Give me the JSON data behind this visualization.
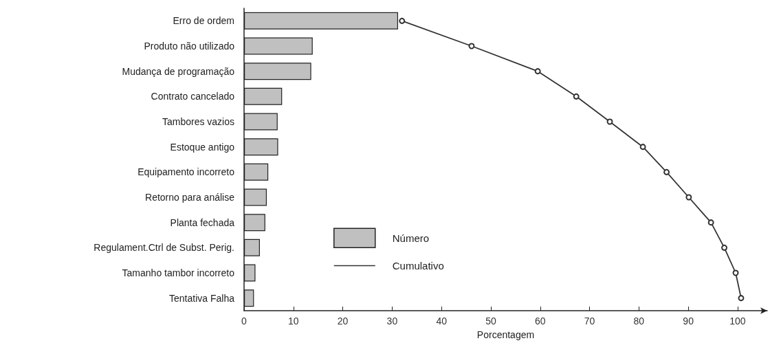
{
  "chart_data": {
    "type": "bar",
    "orientation": "horizontal",
    "xlabel": "Porcentagem",
    "categories": [
      "Erro de ordem",
      "Produto não utilizado",
      "Mudança de programação",
      "Contrato cancelado",
      "Tambores vazios",
      "Estoque antigo",
      "Equipamento incorreto",
      "Retorno para análise",
      "Planta fechada",
      "Regulament.Ctrl de Subst. Perig.",
      "Tamanho tambor incorreto",
      "Tentativa Falha"
    ],
    "series": [
      {
        "name": "Número",
        "color": "#c0c0c0",
        "values": [
          31.2,
          13.9,
          13.6,
          7.7,
          6.8,
          6.9,
          4.9,
          4.6,
          4.3,
          3.2,
          2.3,
          2.0
        ]
      },
      {
        "name": "Cumulativo",
        "type": "line",
        "color": "#333333",
        "values": [
          32.0,
          46.1,
          59.5,
          67.3,
          74.1,
          80.8,
          85.6,
          90.1,
          94.6,
          97.3,
          99.6,
          100.7
        ]
      }
    ],
    "xlim": [
      0,
      106
    ],
    "xticks": [
      0,
      10,
      20,
      30,
      40,
      50,
      60,
      70,
      80,
      90,
      100
    ],
    "grid": false,
    "legend": "bottom",
    "marker": "circle"
  }
}
